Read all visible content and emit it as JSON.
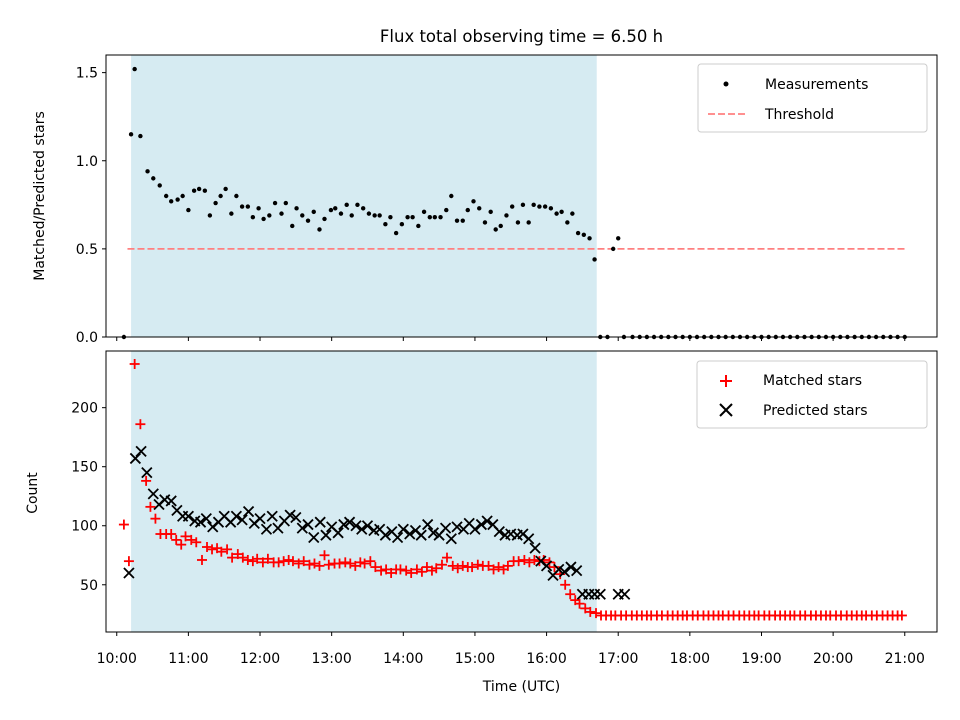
{
  "chart_data": [
    {
      "type": "scatter",
      "title": "Flux total observing time = 6.50 h",
      "ylabel": "Matched/Predicted stars",
      "xlabel": "",
      "xlim": [
        9.85,
        21.45
      ],
      "ylim": [
        0,
        1.6
      ],
      "yticks": [
        0.0,
        0.5,
        1.0,
        1.5
      ],
      "ytick_labels": [
        "0.0",
        "0.5",
        "1.0",
        "1.5"
      ],
      "grid": false,
      "legend": {
        "placement": "top-right",
        "entries": [
          "Measurements",
          "Threshold"
        ]
      },
      "shaded_interval": {
        "x": [
          10.2,
          16.7
        ],
        "color": "#add8e6"
      },
      "colors": {
        "measurements": "#000000",
        "threshold": "#ff8080",
        "shade": "#add8e6"
      },
      "threshold": {
        "name": "Threshold",
        "y": 0.5,
        "x": [
          10.15,
          21.0
        ]
      },
      "series": [
        {
          "name": "Measurements",
          "marker": "dot",
          "x": [
            10.1,
            10.2,
            10.25,
            10.33,
            10.43,
            10.51,
            10.6,
            10.69,
            10.76,
            10.85,
            10.92,
            11.0,
            11.08,
            11.15,
            11.23,
            11.3,
            11.38,
            11.45,
            11.52,
            11.6,
            11.67,
            11.75,
            11.83,
            11.9,
            11.98,
            12.05,
            12.13,
            12.21,
            12.3,
            12.36,
            12.45,
            12.51,
            12.59,
            12.67,
            12.75,
            12.83,
            12.9,
            12.99,
            13.05,
            13.13,
            13.21,
            13.28,
            13.36,
            13.44,
            13.52,
            13.6,
            13.67,
            13.75,
            13.82,
            13.9,
            13.98,
            14.06,
            14.13,
            14.21,
            14.29,
            14.37,
            14.44,
            14.52,
            14.6,
            14.67,
            14.75,
            14.83,
            14.9,
            14.98,
            15.06,
            15.14,
            15.22,
            15.29,
            15.36,
            15.44,
            15.52,
            15.6,
            15.67,
            15.75,
            15.82,
            15.9,
            15.98,
            16.06,
            16.14,
            16.21,
            16.29,
            16.36,
            16.44,
            16.52,
            16.6,
            16.67,
            16.75,
            16.85,
            16.93,
            17.0,
            17.08,
            17.2,
            17.3,
            17.4,
            17.5,
            17.6,
            17.7,
            17.8,
            17.9,
            18.0,
            18.1,
            18.2,
            18.3,
            18.4,
            18.5,
            18.6,
            18.7,
            18.8,
            18.9,
            19.0,
            19.1,
            19.2,
            19.3,
            19.4,
            19.5,
            19.6,
            19.7,
            19.8,
            19.9,
            20.0,
            20.1,
            20.2,
            20.3,
            20.4,
            20.5,
            20.6,
            20.7,
            20.8,
            20.9,
            21.0
          ],
          "y": [
            0.0,
            1.15,
            1.52,
            1.14,
            0.94,
            0.9,
            0.86,
            0.8,
            0.77,
            0.78,
            0.8,
            0.72,
            0.83,
            0.84,
            0.83,
            0.69,
            0.76,
            0.8,
            0.84,
            0.7,
            0.8,
            0.74,
            0.74,
            0.68,
            0.73,
            0.67,
            0.69,
            0.76,
            0.7,
            0.76,
            0.63,
            0.73,
            0.69,
            0.66,
            0.71,
            0.61,
            0.67,
            0.72,
            0.73,
            0.7,
            0.75,
            0.69,
            0.75,
            0.73,
            0.7,
            0.69,
            0.69,
            0.64,
            0.68,
            0.59,
            0.64,
            0.68,
            0.68,
            0.63,
            0.71,
            0.68,
            0.68,
            0.68,
            0.72,
            0.8,
            0.66,
            0.66,
            0.72,
            0.77,
            0.73,
            0.65,
            0.71,
            0.61,
            0.63,
            0.69,
            0.74,
            0.65,
            0.75,
            0.65,
            0.75,
            0.74,
            0.74,
            0.73,
            0.7,
            0.71,
            0.65,
            0.7,
            0.59,
            0.58,
            0.56,
            0.44,
            0.0,
            0.0,
            0.5,
            0.56,
            0.0,
            0.0,
            0.0,
            0.0,
            0.0,
            0.0,
            0.0,
            0.0,
            0.0,
            0.0,
            0.0,
            0.0,
            0.0,
            0.0,
            0.0,
            0.0,
            0.0,
            0.0,
            0.0,
            0.0,
            0.0,
            0.0,
            0.0,
            0.0,
            0.0,
            0.0,
            0.0,
            0.0,
            0.0,
            0.0,
            0.0,
            0.0,
            0.0,
            0.0,
            0.0,
            0.0,
            0.0,
            0.0,
            0.0,
            0.0
          ]
        }
      ]
    },
    {
      "type": "scatter",
      "title": "",
      "ylabel": "Count",
      "xlabel": "Time (UTC)",
      "xlim": [
        9.85,
        21.45
      ],
      "ylim": [
        10,
        248
      ],
      "xticks": [
        10,
        11,
        12,
        13,
        14,
        15,
        16,
        17,
        18,
        19,
        20,
        21
      ],
      "xtick_labels": [
        "10:00",
        "11:00",
        "12:00",
        "13:00",
        "14:00",
        "15:00",
        "16:00",
        "17:00",
        "18:00",
        "19:00",
        "20:00",
        "21:00"
      ],
      "yticks": [
        50,
        100,
        150,
        200
      ],
      "ytick_labels": [
        "50",
        "100",
        "150",
        "200"
      ],
      "grid": false,
      "legend": {
        "placement": "top-right",
        "entries": [
          "Matched stars",
          "Predicted stars"
        ]
      },
      "shaded_interval": {
        "x": [
          10.2,
          16.7
        ],
        "color": "#add8e6"
      },
      "colors": {
        "matched": "#ff0000",
        "predicted": "#000000",
        "shade": "#add8e6"
      },
      "series": [
        {
          "name": "Matched stars",
          "marker": "plus",
          "x": [
            10.1,
            10.17,
            10.25,
            10.33,
            10.41,
            10.47,
            10.54,
            10.61,
            10.69,
            10.76,
            10.83,
            10.9,
            10.96,
            11.04,
            11.11,
            11.19,
            11.26,
            11.33,
            11.4,
            11.46,
            11.54,
            11.61,
            11.69,
            11.76,
            11.83,
            11.9,
            11.96,
            12.04,
            12.11,
            12.19,
            12.26,
            12.33,
            12.4,
            12.46,
            12.54,
            12.61,
            12.69,
            12.76,
            12.83,
            12.9,
            12.96,
            13.04,
            13.11,
            13.19,
            13.26,
            13.33,
            13.4,
            13.46,
            13.54,
            13.61,
            13.69,
            13.76,
            13.83,
            13.9,
            13.96,
            14.04,
            14.11,
            14.19,
            14.26,
            14.33,
            14.4,
            14.46,
            14.54,
            14.61,
            14.69,
            14.76,
            14.83,
            14.9,
            14.96,
            15.04,
            15.11,
            15.19,
            15.26,
            15.33,
            15.4,
            15.46,
            15.54,
            15.61,
            15.69,
            15.76,
            15.83,
            15.9,
            15.96,
            16.04,
            16.11,
            16.19,
            16.26,
            16.33,
            16.4,
            16.46,
            16.54,
            16.61,
            16.69,
            16.76,
            16.83,
            16.9,
            16.96,
            17.04,
            17.11,
            17.19,
            17.26,
            17.33,
            17.4,
            17.46,
            17.54,
            17.61,
            17.69,
            17.76,
            17.83,
            17.9,
            17.96,
            18.04,
            18.11,
            18.19,
            18.26,
            18.33,
            18.4,
            18.46,
            18.54,
            18.61,
            18.69,
            18.76,
            18.83,
            18.9,
            18.96,
            19.04,
            19.11,
            19.19,
            19.26,
            19.33,
            19.4,
            19.46,
            19.54,
            19.61,
            19.69,
            19.76,
            19.83,
            19.9,
            19.96,
            20.04,
            20.11,
            20.19,
            20.26,
            20.33,
            20.4,
            20.46,
            20.54,
            20.61,
            20.69,
            20.76,
            20.83,
            20.9,
            20.96
          ],
          "y": [
            101,
            70,
            237,
            186,
            138,
            116,
            106,
            93,
            93,
            93,
            88,
            84,
            91,
            88,
            86,
            71,
            82,
            80,
            81,
            78,
            80,
            73,
            76,
            73,
            71,
            70,
            72,
            69,
            72,
            69,
            69,
            70,
            71,
            70,
            68,
            70,
            67,
            68,
            66,
            75,
            67,
            68,
            68,
            69,
            68,
            66,
            69,
            68,
            70,
            65,
            62,
            63,
            60,
            63,
            63,
            62,
            60,
            63,
            61,
            65,
            62,
            64,
            67,
            73,
            66,
            64,
            66,
            65,
            65,
            67,
            66,
            66,
            63,
            65,
            63,
            66,
            70,
            70,
            71,
            69,
            71,
            70,
            71,
            69,
            65,
            59,
            50,
            42,
            37,
            34,
            30,
            27,
            26,
            24,
            24,
            24,
            24,
            24,
            24,
            24,
            24,
            24,
            24,
            24,
            24,
            24,
            24,
            24,
            24,
            24,
            24,
            24,
            24,
            24,
            24,
            24,
            24,
            24,
            24,
            24,
            24,
            24,
            24,
            24,
            24,
            24,
            24,
            24,
            24,
            24,
            24,
            24,
            24,
            24,
            24,
            24,
            24,
            24,
            24,
            24,
            24,
            24,
            24,
            24,
            24,
            24,
            24,
            24,
            24,
            24,
            24,
            24,
            24
          ]
        },
        {
          "name": "Predicted stars",
          "marker": "x",
          "x": [
            10.17,
            10.26,
            10.34,
            10.42,
            10.51,
            10.59,
            10.67,
            10.76,
            10.84,
            10.92,
            11.0,
            11.09,
            11.17,
            11.25,
            11.34,
            11.42,
            11.5,
            11.59,
            11.67,
            11.75,
            11.84,
            11.92,
            12.0,
            12.09,
            12.17,
            12.25,
            12.34,
            12.42,
            12.5,
            12.59,
            12.67,
            12.75,
            12.84,
            12.92,
            13.0,
            13.09,
            13.17,
            13.25,
            13.34,
            13.42,
            13.5,
            13.59,
            13.67,
            13.75,
            13.84,
            13.92,
            14.0,
            14.09,
            14.17,
            14.25,
            14.34,
            14.42,
            14.5,
            14.59,
            14.67,
            14.75,
            14.84,
            14.92,
            15.0,
            15.09,
            15.17,
            15.25,
            15.34,
            15.42,
            15.5,
            15.59,
            15.67,
            15.75,
            15.84,
            15.92,
            16.0,
            16.09,
            16.17,
            16.25,
            16.34,
            16.42,
            16.5,
            16.59,
            16.67,
            16.75,
            17.0,
            17.09
          ],
          "y": [
            60,
            157,
            163,
            145,
            127,
            118,
            122,
            121,
            113,
            108,
            108,
            104,
            103,
            106,
            99,
            103,
            108,
            103,
            108,
            105,
            112,
            102,
            106,
            97,
            108,
            98,
            104,
            109,
            107,
            98,
            101,
            90,
            103,
            92,
            99,
            94,
            101,
            103,
            100,
            97,
            100,
            96,
            97,
            92,
            95,
            90,
            97,
            93,
            96,
            92,
            101,
            94,
            92,
            98,
            89,
            99,
            97,
            102,
            97,
            101,
            104,
            101,
            95,
            92,
            93,
            92,
            93,
            89,
            81,
            70,
            66,
            58,
            63,
            61,
            65,
            62,
            42,
            42,
            42,
            42,
            42,
            42
          ]
        }
      ]
    }
  ]
}
